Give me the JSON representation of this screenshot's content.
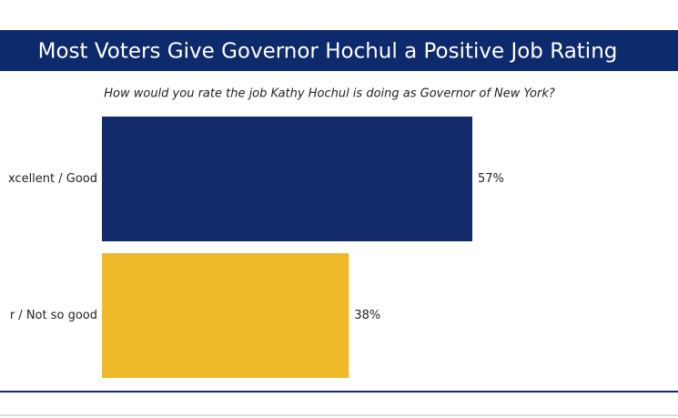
{
  "chart_data": {
    "type": "hbar",
    "title": "Most Voters Give Governor Hochul a Positive Job Rating",
    "subtitle": "How would you rate the job Kathy Hochul is doing as Governor of New York?",
    "categories": [
      "xcellent / Good",
      "r / Not so good"
    ],
    "values": [
      57,
      38
    ],
    "value_labels": [
      "57%",
      "38%"
    ],
    "colors": [
      "#132a6b",
      "#efb92a"
    ]
  }
}
